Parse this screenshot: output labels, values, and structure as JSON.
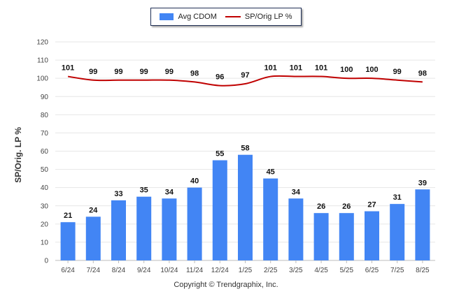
{
  "chart_data": {
    "type": "bar",
    "categories": [
      "6/24",
      "7/24",
      "8/24",
      "9/24",
      "10/24",
      "11/24",
      "12/24",
      "1/25",
      "2/25",
      "3/25",
      "4/25",
      "5/25",
      "6/25",
      "7/25",
      "8/25"
    ],
    "series": [
      {
        "name": "Avg CDOM",
        "type": "bar",
        "color": "#4285f4",
        "values": [
          21,
          24,
          33,
          35,
          34,
          40,
          55,
          58,
          45,
          34,
          26,
          26,
          27,
          31,
          39
        ]
      },
      {
        "name": "SP/Orig LP %",
        "type": "line",
        "color": "#c00000",
        "values": [
          101,
          99,
          99,
          99,
          99,
          98,
          96,
          97,
          101,
          101,
          101,
          100,
          100,
          99,
          98
        ]
      }
    ],
    "ylabel": "SP/Orig. LP %",
    "xlabel": "",
    "ylim": [
      0,
      120
    ],
    "yticks": [
      0,
      10,
      20,
      30,
      40,
      50,
      60,
      70,
      80,
      90,
      100,
      110,
      120
    ],
    "grid": true,
    "legend_position": "top-center",
    "data_labels": true
  },
  "footer": {
    "copyright": "Copyright © Trendgraphix, Inc."
  }
}
